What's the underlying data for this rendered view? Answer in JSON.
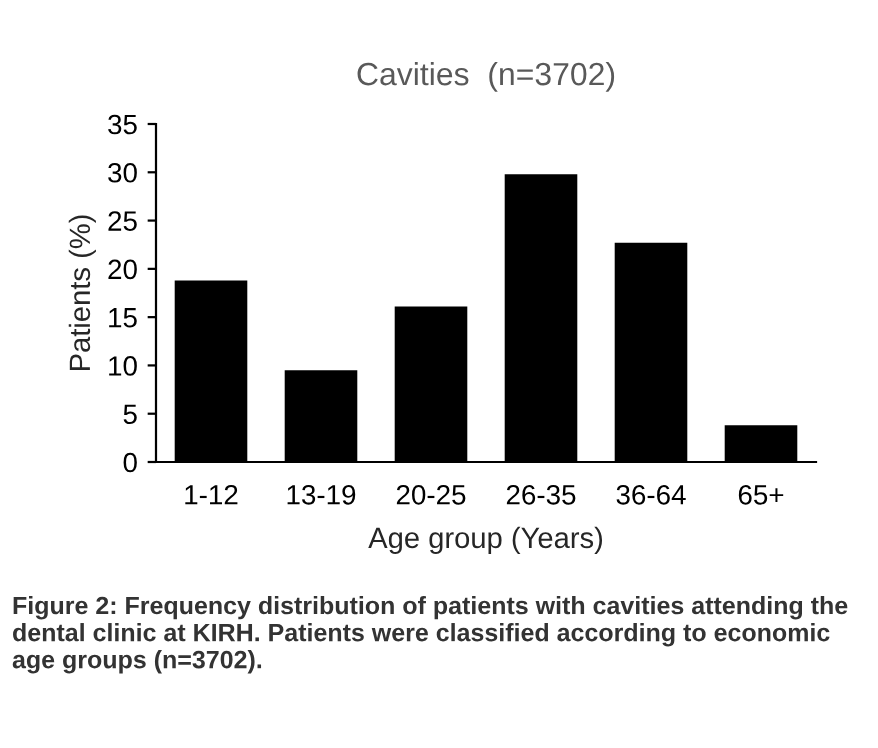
{
  "chart_data": {
    "type": "bar",
    "title": "Cavities  (n=3702)",
    "xlabel": "Age group (Years)",
    "ylabel": "Patients (%)",
    "categories": [
      "1-12",
      "13-19",
      "20-25",
      "26-35",
      "36-64",
      "65+"
    ],
    "values": [
      18.8,
      9.5,
      16.1,
      29.8,
      22.7,
      3.8
    ],
    "color": "#000000",
    "ylim": [
      0,
      35
    ],
    "yticks": [
      0,
      5,
      10,
      15,
      20,
      25,
      30,
      35
    ],
    "grid": false,
    "annotations": [
      "Figure 2: Frequency distribution of patients with cavities attending the dental clinic at KIRH. Patients were classified according to economic age groups (n=3702)."
    ]
  }
}
